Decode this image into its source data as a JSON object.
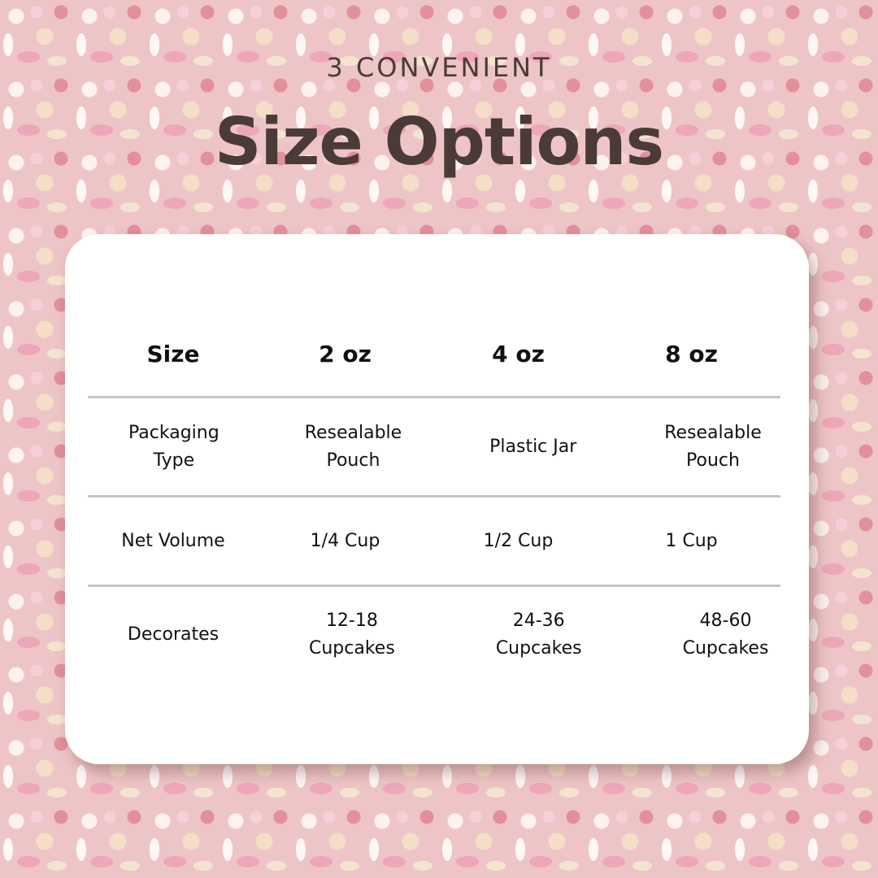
{
  "header": {
    "eyebrow": "3 CONVENIENT",
    "title": "Size Options"
  },
  "table": {
    "columns": [
      "Size",
      "2 oz",
      "4 oz",
      "8 oz"
    ],
    "rows": [
      {
        "label": "Packaging Type",
        "values": [
          "Resealable Pouch",
          "Plastic Jar",
          "Resealable Pouch"
        ]
      },
      {
        "label": "Net Volume",
        "values": [
          "1/4 Cup",
          "1/2 Cup",
          "1 Cup"
        ]
      },
      {
        "label": "Decorates",
        "values": [
          "12-18 Cupcakes",
          "24-36 Cupcakes",
          "48-60 Cupcakes"
        ]
      }
    ]
  },
  "colors": {
    "text": "#4a3b38",
    "card": "#ffffff",
    "divider": "#c9c5bf",
    "background": "#e9b7b9"
  }
}
